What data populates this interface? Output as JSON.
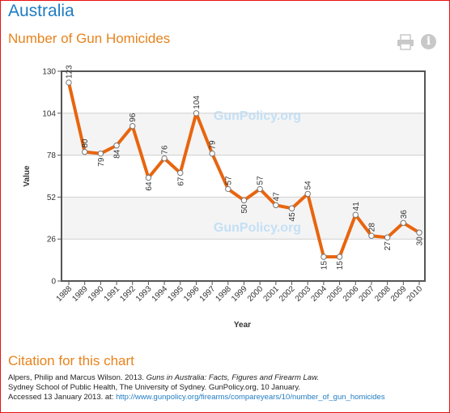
{
  "header": {
    "country": "Australia",
    "metric": "Number of Gun Homicides",
    "print_icon": "print-icon",
    "info_icon": "info-icon",
    "info_glyph": "i"
  },
  "watermark": "GunPolicy.org",
  "chart_data": {
    "type": "line",
    "title": "",
    "xlabel": "Year",
    "ylabel": "Value",
    "x": [
      "1988",
      "1989",
      "1990",
      "1991",
      "1992",
      "1993",
      "1994",
      "1995",
      "1996",
      "1997",
      "1998",
      "1999",
      "2000",
      "2001",
      "2002",
      "2003",
      "2004",
      "2005",
      "2006",
      "2007",
      "2008",
      "2009",
      "2010"
    ],
    "series": [
      {
        "values": [
          123,
          80,
          79,
          84,
          96,
          64,
          76,
          67,
          104,
          79,
          57,
          50,
          57,
          47,
          45,
          54,
          15,
          15,
          41,
          28,
          27,
          36,
          30
        ]
      }
    ],
    "ylim": [
      0,
      130
    ],
    "yticks": [
      0,
      26,
      52,
      78,
      104,
      130
    ],
    "grid": true,
    "line_color": "#e8650f",
    "band_color": "#f4f4f4"
  },
  "citation": {
    "heading": "Citation for this chart",
    "line1_prefix": "Alpers, Philip and Marcus Wilson. 2013. ",
    "line1_title": "Guns in Australia: Facts, Figures and Firearm Law.",
    "line2": "Sydney School of Public Health, The University of Sydney. GunPolicy.org, 10 January.",
    "line3_prefix": "Accessed 13 January 2013. at: ",
    "url": "http://www.gunpolicy.org/firearms/compareyears/10/number_of_gun_homicides"
  }
}
